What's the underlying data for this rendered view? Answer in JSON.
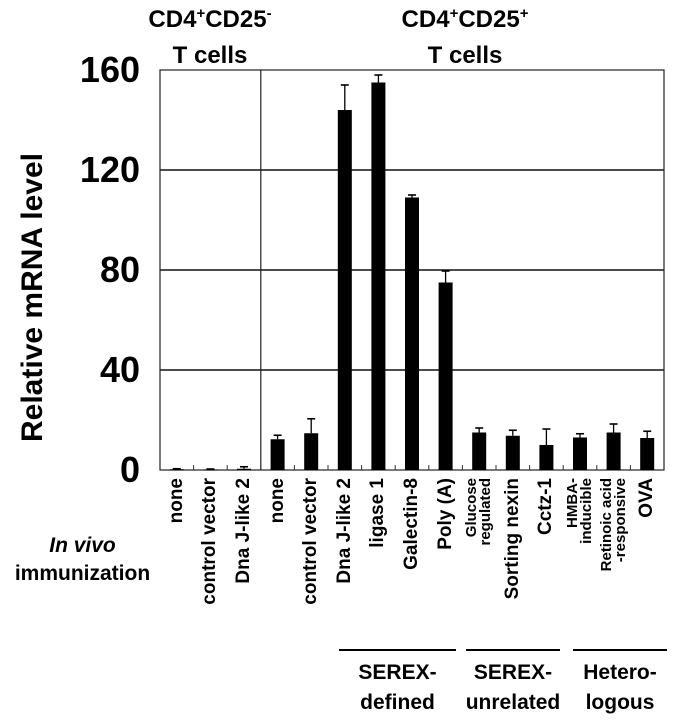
{
  "headers": {
    "left": {
      "line1_base": "CD4",
      "line1_sup1": "+",
      "line1_mid": "CD25",
      "line1_sup2": "-",
      "line2": "T cells"
    },
    "right": {
      "line1_base": "CD4",
      "line1_sup1": "+",
      "line1_mid": "CD25",
      "line1_sup2": "+",
      "line2": "T cells"
    }
  },
  "side_label": {
    "line1": "In vivo",
    "line2": "immunization"
  },
  "groups": [
    {
      "line1": "SEREX-",
      "line2": "defined"
    },
    {
      "line1": "SEREX-",
      "line2": "unrelated"
    },
    {
      "line1": "Hetero-",
      "line2": "logous"
    }
  ],
  "colors": {
    "bar": "#000000",
    "grid": "#000000",
    "background": "#ffffff"
  },
  "chart_data": {
    "type": "bar",
    "title": "",
    "xlabel": "In vivo immunization",
    "ylabel": "Relative mRNA level",
    "ylim": [
      0,
      160
    ],
    "yticks": [
      0,
      40,
      80,
      120,
      160
    ],
    "grid": true,
    "legend": null,
    "panels": [
      {
        "name": "CD4+CD25- T cells",
        "categories": [
          "none",
          "control vector",
          "Dna J-like 2"
        ]
      },
      {
        "name": "CD4+CD25+ T cells",
        "categories": [
          "none",
          "control vector",
          "Dna J-like 2",
          "ligase 1",
          "Galectin-8",
          "Poly (A)",
          "Glucose regulated",
          "Sorting nexin",
          "Cctz-1",
          "HMBA-inducible",
          "Retinoic acid-responsive",
          "OVA"
        ]
      }
    ],
    "categories": [
      "none",
      "control vector",
      "Dna J-like 2",
      "none",
      "control vector",
      "Dna J-like 2",
      "ligase 1",
      "Galectin-8",
      "Poly (A)",
      "Glucose regulated",
      "Sorting nexin",
      "Cctz-1",
      "HMBA-inducible",
      "Retinoic acid-responsive",
      "OVA"
    ],
    "values": [
      0.3,
      0.2,
      0.5,
      12.3,
      14.7,
      144,
      155,
      109,
      75,
      15,
      13.7,
      10,
      13,
      15,
      12.8
    ],
    "error": [
      0.2,
      0.2,
      0.8,
      1.6,
      5.8,
      10,
      3,
      1,
      4.6,
      1.8,
      2.2,
      6.4,
      1.5,
      3.4,
      2.7
    ],
    "category_groups": [
      {
        "name": "SEREX-defined",
        "categories": [
          "Dna J-like 2",
          "ligase 1",
          "Galectin-8",
          "Poly (A)"
        ]
      },
      {
        "name": "SEREX-unrelated",
        "categories": [
          "Glucose regulated",
          "Sorting nexin",
          "Cctz-1"
        ]
      },
      {
        "name": "Heterologous",
        "categories": [
          "HMBA-inducible",
          "Retinoic acid-responsive",
          "OVA"
        ]
      }
    ],
    "x_labels": [
      {
        "lines": [
          "none"
        ]
      },
      {
        "lines": [
          "control vector"
        ]
      },
      {
        "lines": [
          "Dna J-like 2"
        ]
      },
      {
        "lines": [
          "none"
        ]
      },
      {
        "lines": [
          "control vector"
        ]
      },
      {
        "lines": [
          "Dna J-like 2"
        ]
      },
      {
        "lines": [
          "ligase 1"
        ]
      },
      {
        "lines": [
          "Galectin-8"
        ]
      },
      {
        "lines": [
          "Poly (A)"
        ]
      },
      {
        "lines": [
          "Glucose",
          "regulated"
        ]
      },
      {
        "lines": [
          "Sorting nexin"
        ]
      },
      {
        "lines": [
          "Cctz-1"
        ]
      },
      {
        "lines": [
          "HMBA-",
          "inducible"
        ]
      },
      {
        "lines": [
          "Retinoic acid",
          "-responsive"
        ]
      },
      {
        "lines": [
          "OVA"
        ]
      }
    ]
  }
}
